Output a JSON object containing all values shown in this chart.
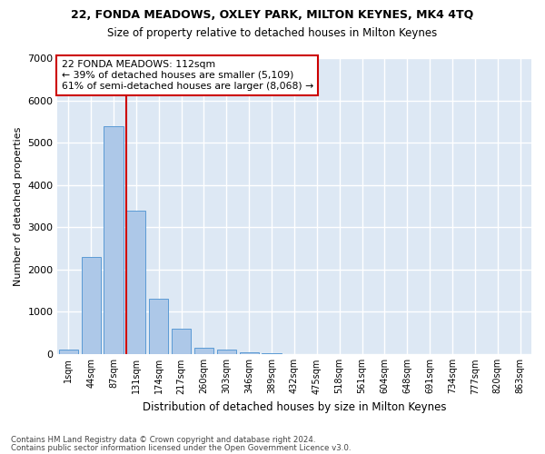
{
  "title_line1": "22, FONDA MEADOWS, OXLEY PARK, MILTON KEYNES, MK4 4TQ",
  "title_line2": "Size of property relative to detached houses in Milton Keynes",
  "xlabel": "Distribution of detached houses by size in Milton Keynes",
  "ylabel": "Number of detached properties",
  "bar_labels": [
    "1sqm",
    "44sqm",
    "87sqm",
    "131sqm",
    "174sqm",
    "217sqm",
    "260sqm",
    "303sqm",
    "346sqm",
    "389sqm",
    "432sqm",
    "475sqm",
    "518sqm",
    "561sqm",
    "604sqm",
    "648sqm",
    "691sqm",
    "734sqm",
    "777sqm",
    "820sqm",
    "863sqm"
  ],
  "bar_values": [
    100,
    2300,
    5400,
    3400,
    1300,
    600,
    150,
    105,
    50,
    30,
    5,
    2,
    0,
    0,
    0,
    0,
    0,
    0,
    0,
    0,
    0
  ],
  "bar_color": "#adc8e8",
  "bar_edgecolor": "#5b9bd5",
  "vline_color": "#cc0000",
  "vline_pos": 2.57,
  "annotation_text": "22 FONDA MEADOWS: 112sqm\n← 39% of detached houses are smaller (5,109)\n61% of semi-detached houses are larger (8,068) →",
  "annotation_box_edgecolor": "#cc0000",
  "ylim_max": 7000,
  "yticks": [
    0,
    1000,
    2000,
    3000,
    4000,
    5000,
    6000,
    7000
  ],
  "background_color": "#dde8f4",
  "grid_color": "white",
  "footnote1": "Contains HM Land Registry data © Crown copyright and database right 2024.",
  "footnote2": "Contains public sector information licensed under the Open Government Licence v3.0."
}
